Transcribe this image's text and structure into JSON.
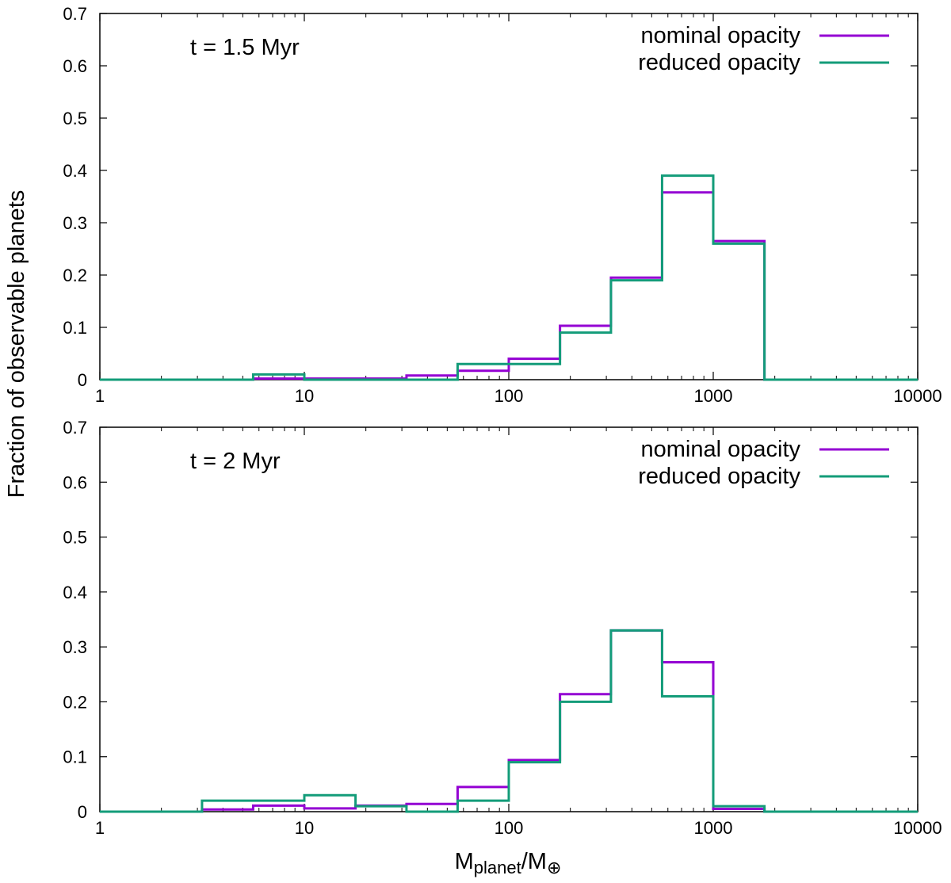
{
  "ylabel": "Fraction of observable planets",
  "xlabel": {
    "main": "M",
    "sub1": "planet",
    "mid": "/M",
    "sub2": "⊕"
  },
  "chart_data": [
    {
      "type": "histogram",
      "panel_label": "t = 1.5 Myr",
      "x_scale": "log",
      "xlim": [
        1,
        10000
      ],
      "ylim": [
        0,
        0.7
      ],
      "x_ticks": [
        "1",
        "10",
        "100",
        "1000",
        "10000"
      ],
      "y_ticks": [
        "0",
        "0.1",
        "0.2",
        "0.3",
        "0.4",
        "0.5",
        "0.6",
        "0.7"
      ],
      "bin_edges": [
        1,
        1.78,
        3.16,
        5.62,
        10,
        17.8,
        31.6,
        56.2,
        100,
        178,
        316,
        562,
        1000,
        1780,
        3160,
        5620,
        10000
      ],
      "legend_position": "top-right",
      "series": [
        {
          "name": "nominal opacity",
          "color": "#9400d3",
          "values": [
            0,
            0,
            0,
            0.002,
            0.002,
            0.002,
            0.008,
            0.017,
            0.04,
            0.103,
            0.195,
            0.358,
            0.265,
            0,
            0,
            0
          ]
        },
        {
          "name": "reduced opacity",
          "color": "#139c79",
          "values": [
            0,
            0,
            0,
            0.01,
            0,
            0,
            0,
            0.03,
            0.03,
            0.09,
            0.19,
            0.39,
            0.26,
            0,
            0,
            0
          ]
        }
      ]
    },
    {
      "type": "histogram",
      "panel_label": "t = 2 Myr",
      "x_scale": "log",
      "xlim": [
        1,
        10000
      ],
      "ylim": [
        0,
        0.7
      ],
      "x_ticks": [
        "1",
        "10",
        "100",
        "1000",
        "10000"
      ],
      "y_ticks": [
        "0",
        "0.1",
        "0.2",
        "0.3",
        "0.4",
        "0.5",
        "0.6",
        "0.7"
      ],
      "bin_edges": [
        1,
        1.78,
        3.16,
        5.62,
        10,
        17.8,
        31.6,
        56.2,
        100,
        178,
        316,
        562,
        1000,
        1780,
        3160,
        5620,
        10000
      ],
      "legend_position": "top-right",
      "series": [
        {
          "name": "nominal opacity",
          "color": "#9400d3",
          "values": [
            0,
            0,
            0.004,
            0.011,
            0.006,
            0.011,
            0.014,
            0.045,
            0.094,
            0.214,
            0.33,
            0.272,
            0.005,
            0,
            0,
            0
          ]
        },
        {
          "name": "reduced opacity",
          "color": "#139c79",
          "values": [
            0,
            0,
            0.02,
            0.02,
            0.03,
            0.01,
            0,
            0.02,
            0.09,
            0.2,
            0.33,
            0.21,
            0.01,
            0,
            0,
            0
          ]
        }
      ]
    }
  ]
}
